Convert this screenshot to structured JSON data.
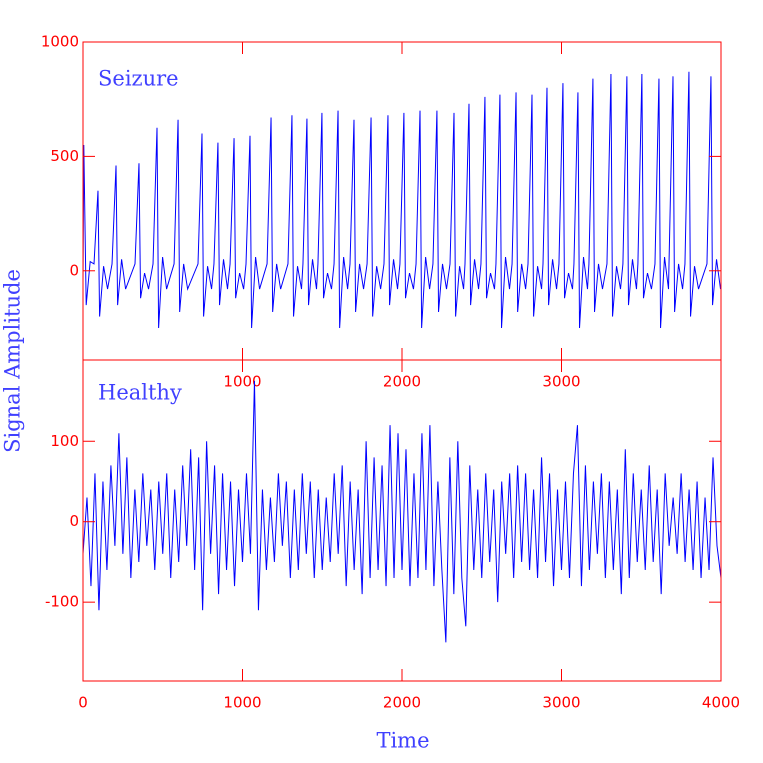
{
  "chart_data": [
    {
      "type": "line",
      "title": "Seizure",
      "ylabel": "Signal Amplitude",
      "x": [
        0,
        5,
        20,
        45,
        69,
        94,
        104,
        129,
        154,
        182,
        207,
        217,
        242,
        267,
        326,
        351,
        361,
        386,
        411,
        439,
        464,
        474,
        499,
        524,
        571,
        596,
        606,
        631,
        656,
        721,
        746,
        756,
        781,
        806,
        821,
        846,
        856,
        881,
        906,
        922,
        947,
        957,
        982,
        1007,
        1022,
        1047,
        1057,
        1082,
        1107,
        1154,
        1179,
        1189,
        1214,
        1239,
        1285,
        1310,
        1320,
        1345,
        1370,
        1379,
        1404,
        1414,
        1439,
        1464,
        1473,
        1498,
        1508,
        1533,
        1558,
        1574,
        1599,
        1609,
        1634,
        1659,
        1674,
        1699,
        1709,
        1734,
        1759,
        1781,
        1806,
        1816,
        1841,
        1866,
        1887,
        1912,
        1922,
        1947,
        1972,
        1987,
        2012,
        2022,
        2047,
        2072,
        2088,
        2113,
        2123,
        2148,
        2173,
        2194,
        2219,
        2229,
        2254,
        2279,
        2301,
        2326,
        2336,
        2361,
        2386,
        2395,
        2420,
        2430,
        2455,
        2480,
        2495,
        2520,
        2530,
        2555,
        2580,
        2589,
        2614,
        2624,
        2649,
        2674,
        2690,
        2715,
        2725,
        2750,
        2775,
        2790,
        2815,
        2825,
        2850,
        2875,
        2884,
        2909,
        2919,
        2944,
        2969,
        2984,
        3009,
        3019,
        3044,
        3069,
        3078,
        3103,
        3113,
        3138,
        3163,
        3172,
        3197,
        3207,
        3232,
        3257,
        3285,
        3310,
        3320,
        3345,
        3370,
        3385,
        3410,
        3420,
        3445,
        3470,
        3479,
        3504,
        3514,
        3539,
        3564,
        3586,
        3611,
        3621,
        3646,
        3671,
        3674,
        3699,
        3709,
        3734,
        3759,
        3774,
        3799,
        3809,
        3834,
        3859,
        3912,
        3937,
        3947,
        3972,
        3997
      ],
      "series": [
        {
          "color": "#0000ff",
          "values": [
            -50,
            550,
            -150,
            40,
            30,
            350,
            -200,
            20,
            -80,
            30,
            460,
            -150,
            50,
            -80,
            30,
            470,
            -120,
            -10,
            -80,
            30,
            625,
            -250,
            60,
            -80,
            30,
            660,
            -180,
            30,
            -80,
            30,
            600,
            -200,
            20,
            -80,
            30,
            560,
            -150,
            50,
            -80,
            30,
            580,
            -120,
            -10,
            -80,
            30,
            590,
            -250,
            60,
            -80,
            30,
            670,
            -180,
            30,
            -80,
            30,
            680,
            -200,
            20,
            -80,
            30,
            665,
            -150,
            50,
            -80,
            30,
            690,
            -120,
            -10,
            -80,
            30,
            700,
            -250,
            60,
            -80,
            30,
            660,
            -180,
            30,
            -80,
            30,
            670,
            -200,
            20,
            -80,
            30,
            680,
            -150,
            50,
            -80,
            30,
            690,
            -120,
            -10,
            -80,
            30,
            700,
            -250,
            60,
            -80,
            30,
            700,
            -180,
            30,
            -80,
            30,
            690,
            -200,
            20,
            -80,
            30,
            730,
            -150,
            50,
            -80,
            30,
            760,
            -120,
            -10,
            -80,
            30,
            770,
            -250,
            60,
            -80,
            30,
            780,
            -180,
            30,
            -80,
            30,
            770,
            -200,
            20,
            -80,
            30,
            800,
            -150,
            50,
            -80,
            30,
            820,
            -120,
            -10,
            -80,
            30,
            780,
            -250,
            60,
            -80,
            30,
            840,
            -180,
            30,
            -80,
            30,
            860,
            -200,
            20,
            -80,
            30,
            850,
            -150,
            50,
            -80,
            30,
            860,
            -120,
            -10,
            -80,
            30,
            840,
            -250,
            60,
            -80,
            30,
            850,
            -180,
            30,
            -80,
            30,
            870,
            -200,
            20,
            -80,
            30,
            850,
            -150,
            50,
            -80
          ]
        }
      ],
      "xlim": [
        0,
        4000
      ],
      "xticks": [
        1000,
        2000,
        3000
      ],
      "ylim": [
        -390,
        1000
      ],
      "yticks": [
        0,
        500,
        1000
      ]
    },
    {
      "type": "line",
      "title": "Healthy",
      "xlabel": "Time",
      "x": [
        0,
        25,
        50,
        75,
        100,
        125,
        150,
        175,
        200,
        225,
        250,
        275,
        300,
        325,
        350,
        375,
        400,
        425,
        450,
        475,
        500,
        525,
        550,
        575,
        600,
        625,
        650,
        675,
        700,
        725,
        750,
        775,
        800,
        825,
        850,
        875,
        900,
        925,
        950,
        975,
        1000,
        1025,
        1050,
        1075,
        1100,
        1125,
        1150,
        1175,
        1200,
        1225,
        1250,
        1275,
        1300,
        1325,
        1350,
        1375,
        1400,
        1425,
        1450,
        1475,
        1500,
        1525,
        1550,
        1575,
        1600,
        1625,
        1650,
        1675,
        1700,
        1725,
        1750,
        1775,
        1800,
        1825,
        1850,
        1875,
        1900,
        1925,
        1950,
        1975,
        2000,
        2025,
        2050,
        2075,
        2100,
        2125,
        2150,
        2175,
        2200,
        2225,
        2250,
        2275,
        2300,
        2325,
        2350,
        2375,
        2400,
        2425,
        2450,
        2475,
        2500,
        2525,
        2550,
        2575,
        2600,
        2625,
        2650,
        2675,
        2700,
        2725,
        2750,
        2775,
        2800,
        2825,
        2850,
        2875,
        2900,
        2925,
        2950,
        2975,
        3000,
        3025,
        3050,
        3075,
        3100,
        3125,
        3150,
        3175,
        3200,
        3225,
        3250,
        3275,
        3300,
        3325,
        3350,
        3375,
        3400,
        3425,
        3450,
        3475,
        3500,
        3525,
        3550,
        3575,
        3600,
        3625,
        3650,
        3675,
        3700,
        3725,
        3750,
        3775,
        3800,
        3825,
        3850,
        3875,
        3900,
        3925,
        3950,
        3975,
        4000
      ],
      "series": [
        {
          "color": "#0000ff",
          "values": [
            -40,
            30,
            -80,
            60,
            -110,
            50,
            -60,
            70,
            -30,
            110,
            -40,
            80,
            -70,
            40,
            -50,
            60,
            -30,
            40,
            -60,
            50,
            -40,
            60,
            -70,
            40,
            -50,
            70,
            -30,
            90,
            -60,
            80,
            -110,
            100,
            -40,
            70,
            -90,
            60,
            -60,
            50,
            -80,
            40,
            -50,
            60,
            -40,
            175,
            -110,
            40,
            -60,
            30,
            -50,
            60,
            -30,
            50,
            -70,
            40,
            -60,
            60,
            -40,
            50,
            -70,
            40,
            -60,
            30,
            -50,
            60,
            -40,
            70,
            -80,
            50,
            -60,
            40,
            -90,
            100,
            -70,
            80,
            -60,
            70,
            -80,
            120,
            -70,
            110,
            -60,
            90,
            -80,
            60,
            -70,
            110,
            -60,
            120,
            -80,
            50,
            -60,
            -150,
            80,
            -90,
            100,
            -70,
            -130,
            70,
            -60,
            40,
            -70,
            60,
            -50,
            40,
            -100,
            50,
            -40,
            60,
            -70,
            70,
            -50,
            60,
            -60,
            40,
            -70,
            80,
            -50,
            60,
            -80,
            40,
            -60,
            50,
            -70,
            60,
            120,
            -80,
            70,
            -60,
            50,
            -40,
            60,
            -70,
            50,
            -60,
            40,
            -90,
            90,
            -70,
            60,
            -50,
            40,
            -60,
            70,
            -50,
            40,
            -90,
            60,
            -30,
            30,
            -40,
            60,
            -50,
            40,
            -60,
            50,
            -70,
            30,
            -60,
            80,
            -30,
            -70
          ]
        }
      ],
      "xlim": [
        0,
        4000
      ],
      "xticks": [
        0,
        1000,
        2000,
        3000,
        4000
      ],
      "ylim": [
        -198,
        201
      ],
      "yticks": [
        -100,
        0,
        100
      ]
    }
  ]
}
